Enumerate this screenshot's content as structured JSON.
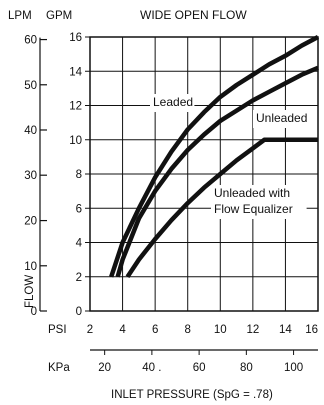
{
  "chart_data": {
    "type": "line",
    "title": "WIDE OPEN FLOW",
    "left_units": {
      "lpm": "LPM",
      "gpm": "GPM"
    },
    "ylabel": "FLOW",
    "xlabel": "INLET PRESSURE (SpG = .78)",
    "psi_label": "PSI",
    "kpa_label": "KPa",
    "ylim_gpm": [
      0,
      16
    ],
    "xlim_psi": [
      2,
      16
    ],
    "gpm_ticks": [
      0,
      2,
      4,
      6,
      8,
      10,
      12,
      14,
      16
    ],
    "lpm_ticks": [
      {
        "label": "0",
        "gpm": 0
      },
      {
        "label": "10",
        "gpm": 2.64
      },
      {
        "label": "20",
        "gpm": 5.28
      },
      {
        "label": "30",
        "gpm": 7.93
      },
      {
        "label": "40",
        "gpm": 10.57
      },
      {
        "label": "50",
        "gpm": 13.21
      },
      {
        "label": "60",
        "gpm": 15.85
      }
    ],
    "psi_ticks": [
      2,
      4,
      6,
      8,
      10,
      12,
      14,
      16
    ],
    "psi_tick_labels": [
      "2",
      "4",
      "6",
      "8",
      "10",
      "12",
      "14",
      "16"
    ],
    "kpa_ticks": [
      {
        "label": "20",
        "psi": 2.9
      },
      {
        "label": "40 .",
        "psi": 5.8
      },
      {
        "label": "60",
        "psi": 8.7
      },
      {
        "label": "80",
        "psi": 11.6
      },
      {
        "label": "100",
        "psi": 14.5
      }
    ],
    "grid": true,
    "series": [
      {
        "name": "Leaded",
        "x": [
          3.3,
          4.0,
          5.0,
          6.0,
          7.0,
          8.0,
          9.0,
          10.0,
          11.0,
          12.0,
          13.0,
          14.0,
          15.0,
          16.0
        ],
        "y": [
          2.0,
          4.0,
          6.0,
          7.8,
          9.3,
          10.6,
          11.6,
          12.5,
          13.2,
          13.8,
          14.4,
          14.9,
          15.5,
          16.0
        ]
      },
      {
        "name": "Unleaded",
        "x": [
          3.7,
          4.0,
          5.0,
          6.0,
          7.0,
          8.0,
          9.0,
          10.0,
          11.0,
          12.0,
          13.0,
          14.0,
          15.0,
          16.0
        ],
        "y": [
          2.0,
          3.0,
          5.4,
          7.0,
          8.3,
          9.4,
          10.3,
          11.1,
          11.7,
          12.3,
          12.8,
          13.3,
          13.8,
          14.2
        ]
      },
      {
        "name": "Unleaded with\nFlow Equalizer",
        "x": [
          4.3,
          5.0,
          6.0,
          7.0,
          8.0,
          9.0,
          10.0,
          11.0,
          12.0,
          12.7,
          13.0,
          14.0,
          15.0,
          16.0
        ],
        "y": [
          2.0,
          3.0,
          4.2,
          5.3,
          6.3,
          7.2,
          8.0,
          8.8,
          9.5,
          10.0,
          10.0,
          10.0,
          10.0,
          10.0
        ]
      }
    ],
    "series_label_lines": [
      [
        "Leaded"
      ],
      [
        "Unleaded"
      ],
      [
        "Unleaded with",
        "Flow Equalizer"
      ]
    ],
    "colors": {
      "line": "#111111",
      "grid": "#111111",
      "background": "#ffffff"
    }
  }
}
